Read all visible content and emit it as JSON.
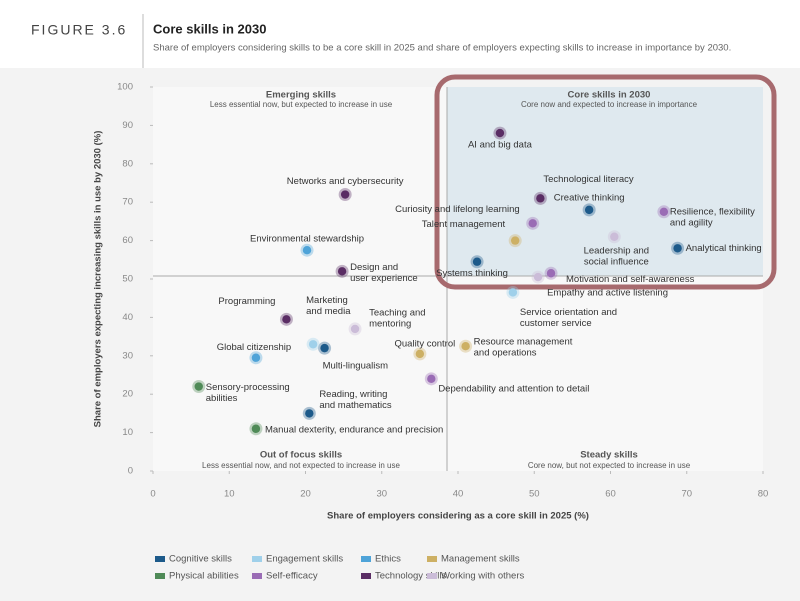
{
  "header": {
    "figure": "FIGURE 3.6",
    "title": "Core skills in 2030",
    "subtitle": "Share of employers considering skills to be a core skill in 2025 and share of employers expecting skills to increase in importance by 2030."
  },
  "chart_data": {
    "type": "scatter",
    "x_label": "Share of employers considering as a core skill in 2025 (%)",
    "y_label": "Share of employers expecting increasing skills in use by 2030 (%)",
    "xlim": [
      0,
      80
    ],
    "xticks": [
      0,
      10,
      20,
      30,
      40,
      50,
      60,
      70,
      80
    ],
    "ylim": [
      0,
      100
    ],
    "yticks": [
      0,
      10,
      20,
      30,
      40,
      50,
      60,
      70,
      80,
      90,
      100
    ],
    "quadrants": [
      {
        "title": "Emerging skills",
        "subtitle": "Less essential now, but expected to increase in use"
      },
      {
        "title": "Core skills in 2030",
        "subtitle": "Core now and expected to increase in importance"
      },
      {
        "title": "Out of focus skills",
        "subtitle": "Less essential now, and not expected to increase in use"
      },
      {
        "title": "Steady skills",
        "subtitle": "Core now, but not expected to increase in use"
      }
    ],
    "series": [
      {
        "name": "Cognitive skills",
        "color": "#1d5a8a",
        "points": [
          {
            "label": [
              "Creative thinking"
            ],
            "x": 57.2,
            "y": 68
          },
          {
            "label": [
              "Analytical thinking"
            ],
            "x": 68.8,
            "y": 58
          },
          {
            "label": [
              "Systems thinking"
            ],
            "x": 42.5,
            "y": 54.5
          },
          {
            "label": [
              "Multi-lingualism"
            ],
            "x": 22.5,
            "y": 32
          },
          {
            "label": [
              "Reading, writing",
              "and mathematics"
            ],
            "x": 20.5,
            "y": 15
          }
        ]
      },
      {
        "name": "Engagement skills",
        "color": "#9fd0ea",
        "points": [
          {
            "label": [
              "Service orientation and",
              "customer service"
            ],
            "x": 47.2,
            "y": 46.5
          },
          {
            "label": [
              "Marketing",
              "and media"
            ],
            "x": 21,
            "y": 33
          }
        ]
      },
      {
        "name": "Ethics",
        "color": "#4ea3d8",
        "points": [
          {
            "label": [
              "Environmental stewardship"
            ],
            "x": 20.2,
            "y": 57.5
          },
          {
            "label": [
              "Global citizenship"
            ],
            "x": 13.5,
            "y": 29.5
          }
        ]
      },
      {
        "name": "Management skills",
        "color": "#cdb064",
        "points": [
          {
            "label": [
              "Talent management"
            ],
            "x": 47.5,
            "y": 60
          },
          {
            "label": [
              "Quality control"
            ],
            "x": 35,
            "y": 30.5
          },
          {
            "label": [
              "Resource management",
              "and operations"
            ],
            "x": 41,
            "y": 32.5
          }
        ]
      },
      {
        "name": "Physical abilities",
        "color": "#4f8a57",
        "points": [
          {
            "label": [
              "Sensory-processing",
              "abilities"
            ],
            "x": 6,
            "y": 22
          },
          {
            "label": [
              "Manual dexterity, endurance and precision"
            ],
            "x": 13.5,
            "y": 11
          }
        ]
      },
      {
        "name": "Self-efficacy",
        "color": "#9a6cb5",
        "points": [
          {
            "label": [
              "Resilience, flexibility",
              "and agility"
            ],
            "x": 67,
            "y": 67.5
          },
          {
            "label": [
              "Curiosity and lifelong learning"
            ],
            "x": 49.8,
            "y": 64.5
          },
          {
            "label": [
              "Motivation and self-awareness"
            ],
            "x": 52.2,
            "y": 51.5
          },
          {
            "label": [
              "Dependability and attention to detail"
            ],
            "x": 36.5,
            "y": 24
          }
        ]
      },
      {
        "name": "Technology skills",
        "color": "#5a2d64",
        "points": [
          {
            "label": [
              "AI and big data"
            ],
            "x": 45.5,
            "y": 88
          },
          {
            "label": [
              "Networks and cybersecurity"
            ],
            "x": 25.2,
            "y": 72
          },
          {
            "label": [
              "Technological literacy"
            ],
            "x": 50.8,
            "y": 71
          },
          {
            "label": [
              "Design and",
              "user experience"
            ],
            "x": 24.8,
            "y": 52
          },
          {
            "label": [
              "Programming"
            ],
            "x": 17.5,
            "y": 39.5
          }
        ]
      },
      {
        "name": "Working with others",
        "color": "#cbbcd8",
        "points": [
          {
            "label": [
              "Leadership and",
              "social influence"
            ],
            "x": 60.5,
            "y": 61
          },
          {
            "label": [
              "Empathy and active listening"
            ],
            "x": 50.5,
            "y": 50.5
          },
          {
            "label": [
              "Teaching and",
              "mentoring"
            ],
            "x": 26.5,
            "y": 37
          }
        ]
      }
    ]
  }
}
